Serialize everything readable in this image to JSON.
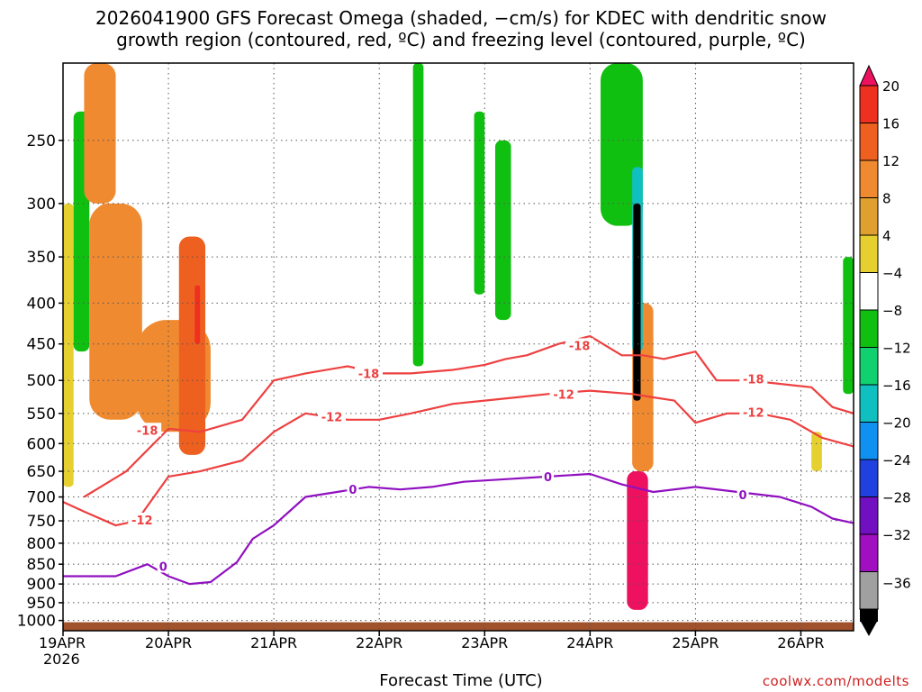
{
  "title_line1": "2026041900 GFS Forecast Omega (shaded, −cm/s) for KDEC with dendritic snow",
  "title_line2": "growth region (contoured, red, ºC) and freezing level (contoured, purple, ºC)",
  "xlabel": "Forecast Time (UTC)",
  "credit": "coolwx.com/modelts",
  "chart_data": {
    "type": "heatmap",
    "x_axis": {
      "tick_labels": [
        "19APR",
        "20APR",
        "21APR",
        "22APR",
        "23APR",
        "24APR",
        "25APR",
        "26APR"
      ],
      "first_tick_year": "2026",
      "range_days": [
        0,
        7.5
      ]
    },
    "y_axis": {
      "unit": "hPa",
      "scale": "log-pressure",
      "range": [
        1030,
        200
      ],
      "tick_labels": [
        "250",
        "300",
        "350",
        "400",
        "450",
        "500",
        "550",
        "600",
        "650",
        "700",
        "750",
        "800",
        "850",
        "900",
        "950",
        "1000"
      ],
      "tick_values": [
        250,
        300,
        350,
        400,
        450,
        500,
        550,
        600,
        650,
        700,
        750,
        800,
        850,
        900,
        950,
        1000
      ]
    },
    "grid": true,
    "colorbar": {
      "labels": [
        "20",
        "16",
        "12",
        "8",
        "4",
        "−4",
        "−8",
        "−12",
        "−16",
        "−20",
        "−24",
        "−28",
        "−32",
        "−36"
      ],
      "colors": [
        "#ee1160",
        "#ee3020",
        "#ee6020",
        "#f08a30",
        "#e0a030",
        "#e6d030",
        "#ffffff",
        "#10c010",
        "#10d070",
        "#10c0c0",
        "#1090f0",
        "#2040e0",
        "#7010c0",
        "#a010c0",
        "#a0a0a0",
        "#000000"
      ]
    },
    "ground_color": "#a0522d",
    "omega_regions": [
      {
        "x": [
          0.0,
          0.1
        ],
        "p": [
          300,
          680
        ],
        "value": 6
      },
      {
        "x": [
          0.1,
          0.25
        ],
        "p": [
          230,
          460
        ],
        "value": -6
      },
      {
        "x": [
          0.2,
          0.5
        ],
        "p": [
          200,
          300
        ],
        "value": 8
      },
      {
        "x": [
          0.25,
          0.75
        ],
        "p": [
          300,
          560
        ],
        "value": 8
      },
      {
        "x": [
          0.3,
          0.6
        ],
        "p": [
          300,
          520
        ],
        "value": 10
      },
      {
        "x": [
          0.7,
          1.4
        ],
        "p": [
          420,
          580
        ],
        "value": 8
      },
      {
        "x": [
          1.1,
          1.35
        ],
        "p": [
          330,
          620
        ],
        "value": 12
      },
      {
        "x": [
          1.25,
          1.3
        ],
        "p": [
          380,
          450
        ],
        "value": 16
      },
      {
        "x": [
          3.32,
          3.42
        ],
        "p": [
          200,
          480
        ],
        "value": -6
      },
      {
        "x": [
          3.9,
          4.0
        ],
        "p": [
          230,
          390
        ],
        "value": -6
      },
      {
        "x": [
          4.1,
          4.25
        ],
        "p": [
          250,
          420
        ],
        "value": -6
      },
      {
        "x": [
          5.1,
          5.5
        ],
        "p": [
          200,
          320
        ],
        "value": -6
      },
      {
        "x": [
          5.4,
          5.6
        ],
        "p": [
          400,
          650
        ],
        "value": 8
      },
      {
        "x": [
          5.35,
          5.55
        ],
        "p": [
          650,
          970
        ],
        "value": 22
      },
      {
        "x": [
          5.4,
          5.5
        ],
        "p": [
          270,
          460
        ],
        "value": -12
      },
      {
        "x": [
          5.41,
          5.48
        ],
        "p": [
          300,
          530
        ],
        "value": -38
      },
      {
        "x": [
          7.1,
          7.2
        ],
        "p": [
          580,
          650
        ],
        "value": 6
      },
      {
        "x": [
          7.4,
          7.5
        ],
        "p": [
          350,
          520
        ],
        "value": -6
      }
    ],
    "series": [
      {
        "name": "-18",
        "color": "#ee4040",
        "x": [
          0.2,
          0.6,
          1.0,
          1.3,
          1.7,
          2.0,
          2.3,
          2.7,
          3.0,
          3.3,
          3.7,
          4.0,
          4.2,
          4.4,
          4.7,
          5.0,
          5.3,
          5.5,
          5.7,
          6.0,
          6.2,
          6.5,
          6.8,
          7.1,
          7.3,
          7.5
        ],
        "y": [
          700,
          650,
          575,
          580,
          560,
          500,
          490,
          480,
          490,
          490,
          485,
          478,
          470,
          465,
          450,
          440,
          465,
          465,
          470,
          460,
          500,
          500,
          505,
          510,
          540,
          550
        ]
      },
      {
        "name": "-12",
        "color": "#ee4040",
        "x": [
          0.0,
          0.2,
          0.5,
          0.7,
          1.0,
          1.3,
          1.7,
          2.0,
          2.3,
          2.7,
          3.0,
          3.3,
          3.7,
          4.0,
          4.3,
          4.6,
          5.0,
          5.4,
          5.6,
          5.8,
          6.0,
          6.3,
          6.6,
          6.9,
          7.2,
          7.5
        ],
        "y": [
          710,
          730,
          760,
          750,
          660,
          650,
          630,
          580,
          550,
          560,
          560,
          550,
          535,
          530,
          525,
          520,
          515,
          520,
          525,
          530,
          565,
          550,
          550,
          560,
          590,
          605
        ]
      },
      {
        "name": "0",
        "color": "#9010c0",
        "x": [
          0.0,
          0.5,
          0.8,
          1.0,
          1.2,
          1.4,
          1.65,
          1.8,
          2.0,
          2.3,
          2.6,
          2.9,
          3.2,
          3.5,
          3.8,
          4.2,
          4.6,
          5.0,
          5.3,
          5.6,
          6.0,
          6.4,
          6.8,
          7.1,
          7.3,
          7.5
        ],
        "y": [
          880,
          880,
          850,
          880,
          900,
          895,
          845,
          790,
          760,
          700,
          690,
          680,
          685,
          680,
          670,
          665,
          660,
          655,
          675,
          690,
          680,
          690,
          700,
          720,
          745,
          755
        ]
      }
    ],
    "contour_labels": [
      {
        "text": "-18",
        "color": "#ee4040",
        "x": 0.8,
        "p": 577
      },
      {
        "text": "-18",
        "color": "#ee4040",
        "x": 2.9,
        "p": 490
      },
      {
        "text": "-18",
        "color": "#ee4040",
        "x": 4.9,
        "p": 452
      },
      {
        "text": "-18",
        "color": "#ee4040",
        "x": 6.55,
        "p": 498
      },
      {
        "text": "-12",
        "color": "#ee4040",
        "x": 0.75,
        "p": 748
      },
      {
        "text": "-12",
        "color": "#ee4040",
        "x": 2.55,
        "p": 555
      },
      {
        "text": "-12",
        "color": "#ee4040",
        "x": 4.75,
        "p": 520
      },
      {
        "text": "-12",
        "color": "#ee4040",
        "x": 6.55,
        "p": 548
      },
      {
        "text": "0",
        "color": "#9010c0",
        "x": 0.95,
        "p": 855
      },
      {
        "text": "0",
        "color": "#9010c0",
        "x": 2.75,
        "p": 685
      },
      {
        "text": "0",
        "color": "#9010c0",
        "x": 4.6,
        "p": 660
      },
      {
        "text": "0",
        "color": "#9010c0",
        "x": 6.45,
        "p": 695
      }
    ]
  }
}
